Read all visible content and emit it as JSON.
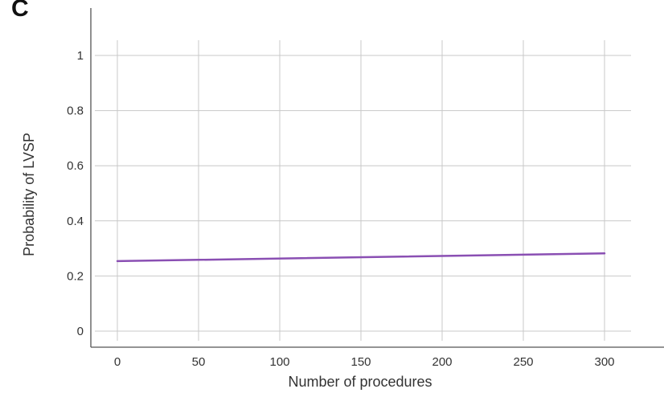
{
  "chart_data": {
    "type": "line",
    "panel_label": "C",
    "xlabel": "Number of procedures",
    "ylabel": "Probability of LVSP",
    "xlim": [
      0,
      300
    ],
    "ylim": [
      0,
      1
    ],
    "x_ticks": [
      0,
      50,
      100,
      150,
      200,
      250,
      300
    ],
    "y_ticks": [
      0,
      0.2,
      0.4,
      0.6,
      0.8,
      1
    ],
    "grid": true,
    "series": [
      {
        "color": "#8a4fb3",
        "x": [
          0,
          300
        ],
        "y": [
          0.254,
          0.282
        ]
      }
    ]
  }
}
